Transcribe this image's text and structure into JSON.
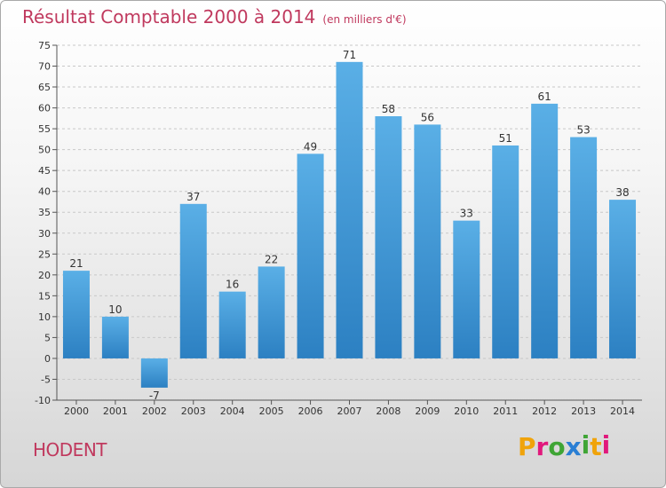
{
  "header": {
    "title": "Résultat Comptable 2000 à 2014",
    "unit": "(en milliers d'€)"
  },
  "footer": {
    "commune": "HODENT",
    "logo_letters": [
      "P",
      "r",
      "o",
      "x",
      "i",
      "t",
      "i"
    ],
    "logo_colors": [
      "#f0a30a",
      "#e1197c",
      "#3fa535",
      "#2a7fd4",
      "#3fa535",
      "#f0a30a",
      "#e1197c"
    ]
  },
  "colors": {
    "title": "#c0395e",
    "bar_top": "#5aafe6",
    "bar_bottom": "#2c80c2",
    "grid": "#c8c8c8"
  },
  "chart_data": {
    "type": "bar",
    "title": "Résultat Comptable 2000 à 2014",
    "subtitle": "(en milliers d'€)",
    "xlabel": "",
    "ylabel": "",
    "categories": [
      "2000",
      "2001",
      "2002",
      "2003",
      "2004",
      "2005",
      "2006",
      "2007",
      "2008",
      "2009",
      "2010",
      "2011",
      "2012",
      "2013",
      "2014"
    ],
    "values": [
      21,
      10,
      -7,
      37,
      16,
      22,
      49,
      71,
      58,
      56,
      33,
      51,
      61,
      53,
      38
    ],
    "ylim": [
      -10,
      75
    ],
    "yticks": [
      -10,
      -5,
      0,
      5,
      10,
      15,
      20,
      25,
      30,
      35,
      40,
      45,
      50,
      55,
      60,
      65,
      70,
      75
    ],
    "grid": "horizontal dashed",
    "legend": "none"
  }
}
